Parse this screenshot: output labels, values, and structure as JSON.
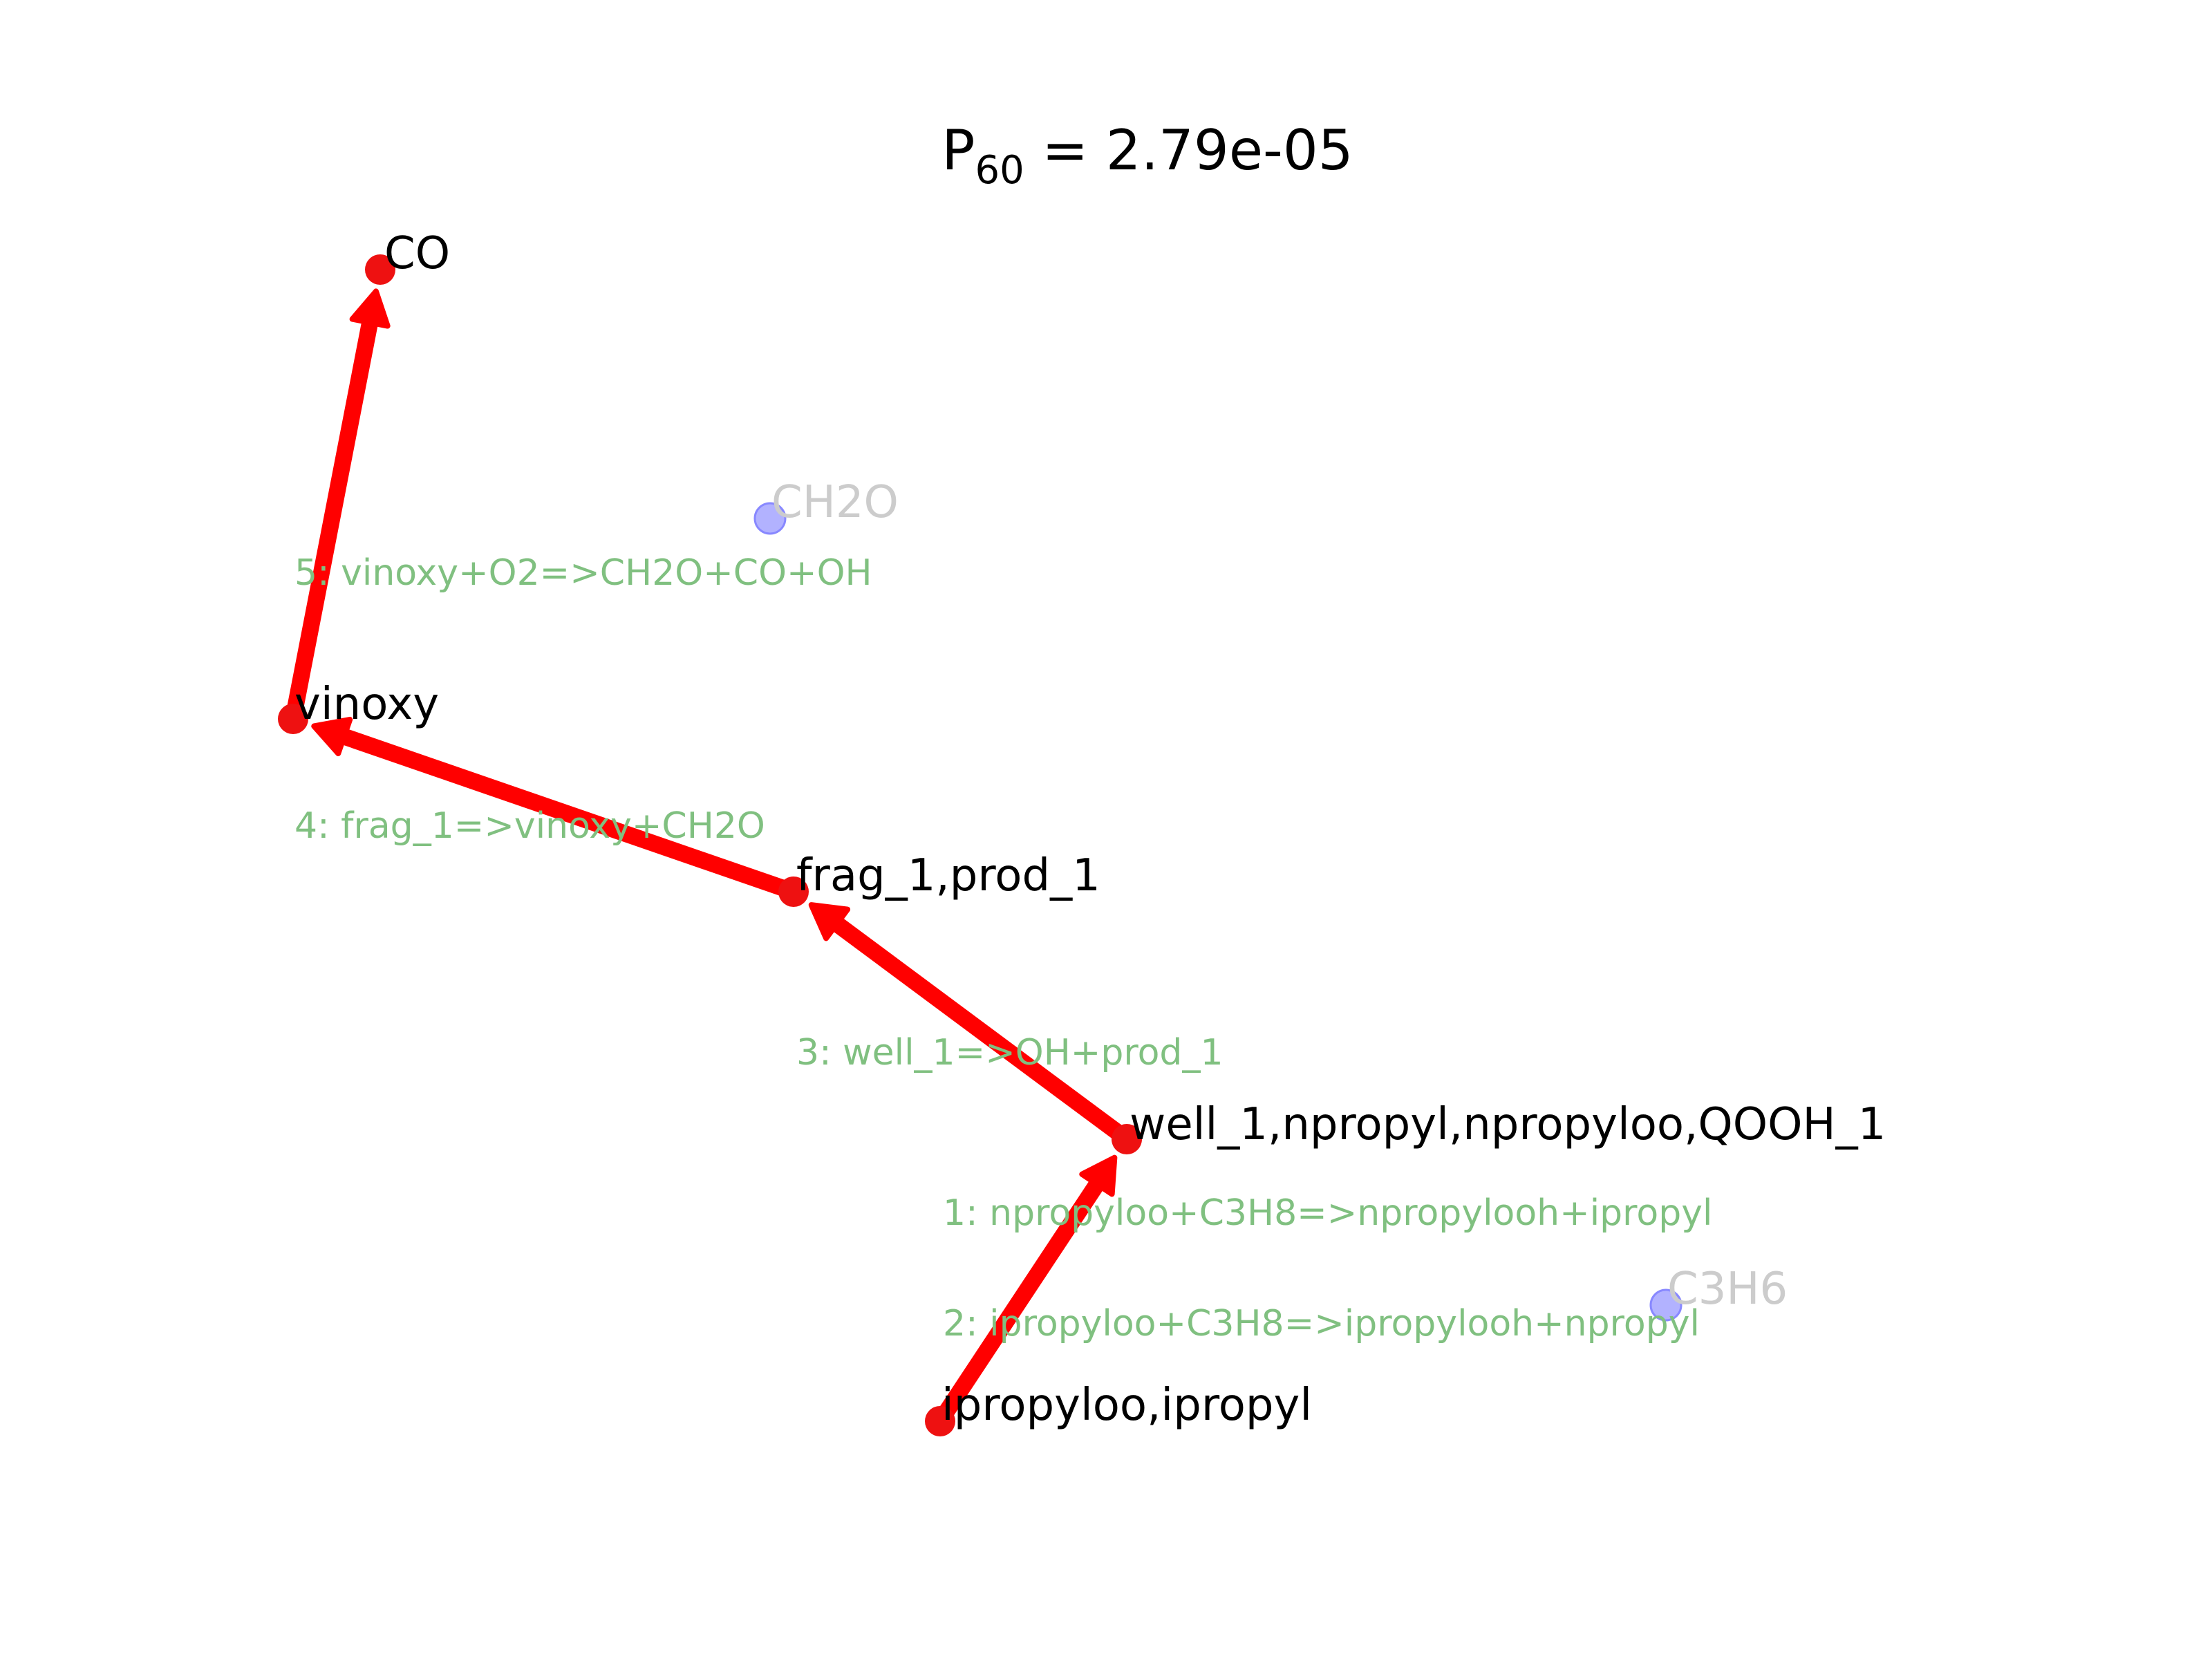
{
  "title": {
    "prefix": "P",
    "subscript": "60",
    "suffix": " = 2.79e-05"
  },
  "colors": {
    "path": "#ff0000",
    "path_node": "#ee1111",
    "side_node": "#8888ff",
    "side_label": "#cccccc",
    "reaction_label": "#80c080"
  },
  "nodes": [
    {
      "id": "co",
      "label": "CO",
      "type": "path"
    },
    {
      "id": "vinoxy",
      "label": "vinoxy",
      "type": "path"
    },
    {
      "id": "frag",
      "label": "frag_1,prod_1",
      "type": "path"
    },
    {
      "id": "well",
      "label": "well_1,npropyl,npropyloo,QOOH_1",
      "type": "path"
    },
    {
      "id": "ipropyl",
      "label": "ipropyloo,ipropyl",
      "type": "path"
    },
    {
      "id": "ch2o",
      "label": "CH2O",
      "type": "side"
    },
    {
      "id": "c3h6",
      "label": "C3H6",
      "type": "side"
    }
  ],
  "edges": [
    {
      "from": "ipropyl",
      "to": "well"
    },
    {
      "from": "well",
      "to": "frag"
    },
    {
      "from": "frag",
      "to": "vinoxy"
    },
    {
      "from": "vinoxy",
      "to": "co"
    }
  ],
  "reactions": [
    {
      "id": "r5",
      "label": "5: vinoxy+O2=>CH2O+CO+OH"
    },
    {
      "id": "r4",
      "label": "4: frag_1=>vinoxy+CH2O"
    },
    {
      "id": "r3",
      "label": "3: well_1=>OH+prod_1"
    },
    {
      "id": "r1",
      "label": "1: npropyloo+C3H8=>npropylooh+ipropyl"
    },
    {
      "id": "r2",
      "label": "2: ipropyloo+C3H8=>ipropylooh+npropyl"
    }
  ]
}
